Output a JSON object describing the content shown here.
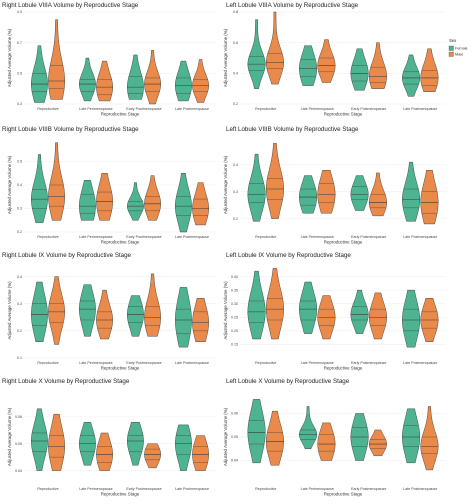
{
  "colors": {
    "female": "#4db391",
    "male": "#e98a4b",
    "outline": "#3a3a3a",
    "grid": "#ececec"
  },
  "legend": {
    "title": "Sex",
    "items": [
      "Female",
      "Male"
    ]
  },
  "chart_data": [
    {
      "type": "violin",
      "title": "Right Lobule VIIIA Volume by Reproductive Stage",
      "xlabel": "Reproductive Stage",
      "ylabel": "Adjusted Average Volume (%)",
      "categories": [
        "Reproductive",
        "Late Perimenopause",
        "Early Postmenopause",
        "Late Postmenopause"
      ],
      "ylim": [
        0.3,
        0.9
      ],
      "yticks": [
        "0.3",
        "0.5",
        "0.7",
        "0.9"
      ],
      "series": [
        {
          "name": "Female",
          "median": [
            0.43,
            0.43,
            0.41,
            0.42
          ],
          "q1": [
            0.38,
            0.38,
            0.37,
            0.37
          ],
          "q3": [
            0.5,
            0.46,
            0.48,
            0.47
          ],
          "min": [
            0.31,
            0.32,
            0.33,
            0.32
          ],
          "max": [
            0.68,
            0.6,
            0.62,
            0.58
          ]
        },
        {
          "name": "Male",
          "median": [
            0.45,
            0.41,
            0.43,
            0.42
          ],
          "q1": [
            0.4,
            0.36,
            0.38,
            0.38
          ],
          "q3": [
            0.55,
            0.46,
            0.47,
            0.46
          ],
          "min": [
            0.33,
            0.32,
            0.3,
            0.31
          ],
          "max": [
            0.85,
            0.58,
            0.65,
            0.59
          ]
        }
      ]
    },
    {
      "type": "violin",
      "title": "Left Lobule VIIIA Volume by Reproductive Stage",
      "xlabel": "Reproductive Stage",
      "ylabel": "Adjusted Average Volume (%)",
      "categories": [
        "Reproductive",
        "Late Perimenopause",
        "Early Postmenopause",
        "Late Postmenopause"
      ],
      "ylim": [
        0.2,
        0.8
      ],
      "yticks": [
        "0.2",
        "0.4",
        "0.6",
        "0.8"
      ],
      "series": [
        {
          "name": "Female",
          "median": [
            0.46,
            0.43,
            0.4,
            0.37
          ],
          "q1": [
            0.42,
            0.38,
            0.35,
            0.33
          ],
          "q3": [
            0.51,
            0.49,
            0.45,
            0.41
          ],
          "min": [
            0.3,
            0.32,
            0.29,
            0.25
          ],
          "max": [
            0.75,
            0.58,
            0.56,
            0.52
          ]
        },
        {
          "name": "Male",
          "median": [
            0.47,
            0.45,
            0.38,
            0.37
          ],
          "q1": [
            0.43,
            0.41,
            0.34,
            0.32
          ],
          "q3": [
            0.53,
            0.5,
            0.44,
            0.42
          ],
          "min": [
            0.33,
            0.34,
            0.3,
            0.28
          ],
          "max": [
            0.8,
            0.62,
            0.6,
            0.56
          ]
        }
      ]
    },
    {
      "type": "violin",
      "title": "Right Lobule VIIIB Volume by Reproductive Stage",
      "xlabel": "Reproductive Stage",
      "ylabel": "Adjusted Average Volume (%)",
      "categories": [
        "Reproductive",
        "Late Perimenopause",
        "Early Postmenopause",
        "Late Postmenopause"
      ],
      "ylim": [
        0.2,
        0.6
      ],
      "yticks": [
        "0.2",
        "0.3",
        "0.4",
        "0.5"
      ],
      "series": [
        {
          "name": "Female",
          "median": [
            0.34,
            0.31,
            0.31,
            0.31
          ],
          "q1": [
            0.3,
            0.28,
            0.29,
            0.27
          ],
          "q3": [
            0.38,
            0.36,
            0.33,
            0.35
          ],
          "min": [
            0.24,
            0.25,
            0.25,
            0.2
          ],
          "max": [
            0.53,
            0.42,
            0.41,
            0.45
          ]
        },
        {
          "name": "Male",
          "median": [
            0.35,
            0.33,
            0.32,
            0.3
          ],
          "q1": [
            0.31,
            0.29,
            0.29,
            0.27
          ],
          "q3": [
            0.4,
            0.37,
            0.35,
            0.34
          ],
          "min": [
            0.25,
            0.25,
            0.25,
            0.23
          ],
          "max": [
            0.58,
            0.45,
            0.44,
            0.41
          ]
        }
      ]
    },
    {
      "type": "violin",
      "title": "Left Lobule VIIIB Volume by Reproductive Stage",
      "xlabel": "Reproductive Stage",
      "ylabel": "Adjusted Average Volume (%)",
      "categories": [
        "Reproductive",
        "Late Perimenopause",
        "Early Postmenopause",
        "Late Postmenopause"
      ],
      "ylim": [
        0.15,
        0.5
      ],
      "yticks": [
        "0.2",
        "0.3",
        "0.4"
      ],
      "series": [
        {
          "name": "Female",
          "median": [
            0.29,
            0.28,
            0.29,
            0.27
          ],
          "q1": [
            0.26,
            0.25,
            0.27,
            0.24
          ],
          "q3": [
            0.33,
            0.31,
            0.32,
            0.31
          ],
          "min": [
            0.19,
            0.22,
            0.23,
            0.19
          ],
          "max": [
            0.44,
            0.36,
            0.36,
            0.41
          ]
        },
        {
          "name": "Male",
          "median": [
            0.31,
            0.29,
            0.26,
            0.26
          ],
          "q1": [
            0.27,
            0.26,
            0.24,
            0.22
          ],
          "q3": [
            0.35,
            0.33,
            0.29,
            0.3
          ],
          "min": [
            0.2,
            0.22,
            0.21,
            0.18
          ],
          "max": [
            0.48,
            0.38,
            0.37,
            0.38
          ]
        }
      ]
    },
    {
      "type": "violin",
      "title": "Right Lobule IX Volume by Reproductive Stage",
      "xlabel": "Reproductive Stage",
      "ylabel": "Adjusted Average Volume (%)",
      "categories": [
        "Reproductive",
        "Late Perimenopause",
        "Early Postmenopause",
        "Late Postmenopause"
      ],
      "ylim": [
        0.1,
        0.45
      ],
      "yticks": [
        "0.1",
        "0.2",
        "0.3",
        "0.4"
      ],
      "series": [
        {
          "name": "Female",
          "median": [
            0.26,
            0.28,
            0.26,
            0.24
          ],
          "q1": [
            0.22,
            0.24,
            0.23,
            0.19
          ],
          "q3": [
            0.3,
            0.31,
            0.29,
            0.28
          ],
          "min": [
            0.16,
            0.18,
            0.18,
            0.14
          ],
          "max": [
            0.38,
            0.37,
            0.33,
            0.36
          ]
        },
        {
          "name": "Male",
          "median": [
            0.27,
            0.24,
            0.25,
            0.23
          ],
          "q1": [
            0.23,
            0.21,
            0.22,
            0.2
          ],
          "q3": [
            0.3,
            0.27,
            0.29,
            0.27
          ],
          "min": [
            0.15,
            0.17,
            0.18,
            0.16
          ],
          "max": [
            0.4,
            0.35,
            0.41,
            0.32
          ]
        }
      ]
    },
    {
      "type": "violin",
      "title": "Left Lobule IX Volume by Reproductive Stage",
      "xlabel": "Reproductive Stage",
      "ylabel": "Adjusted Average Volume (%)",
      "categories": [
        "Reproductive",
        "Late Perimenopause",
        "Early Postmenopause",
        "Late Postmenopause"
      ],
      "ylim": [
        0.1,
        0.45
      ],
      "yticks": [
        "0.15",
        "0.20",
        "0.25",
        "0.30",
        "0.35",
        "0.40"
      ],
      "series": [
        {
          "name": "Female",
          "median": [
            0.27,
            0.28,
            0.26,
            0.24
          ],
          "q1": [
            0.23,
            0.24,
            0.24,
            0.2
          ],
          "q3": [
            0.31,
            0.31,
            0.29,
            0.28
          ],
          "min": [
            0.17,
            0.19,
            0.19,
            0.14
          ],
          "max": [
            0.42,
            0.38,
            0.35,
            0.35
          ]
        },
        {
          "name": "Male",
          "median": [
            0.28,
            0.25,
            0.25,
            0.24
          ],
          "q1": [
            0.24,
            0.22,
            0.22,
            0.21
          ],
          "q3": [
            0.32,
            0.28,
            0.28,
            0.27
          ],
          "min": [
            0.17,
            0.17,
            0.17,
            0.16
          ],
          "max": [
            0.43,
            0.33,
            0.34,
            0.32
          ]
        }
      ]
    },
    {
      "type": "violin",
      "title": "Right Lobule X Volume by Reproductive Stage",
      "xlabel": "Reproductive Stage",
      "ylabel": "Adjusted Average Volume (%)",
      "categories": [
        "Reproductive",
        "Late Perimenopause",
        "Early Postmenopause",
        "Late Postmenopause"
      ],
      "ylim": [
        0.035,
        0.07
      ],
      "yticks": [
        "0.04",
        "0.05",
        "0.06"
      ],
      "series": [
        {
          "name": "Female",
          "median": [
            0.051,
            0.05,
            0.051,
            0.05
          ],
          "q1": [
            0.047,
            0.047,
            0.047,
            0.046
          ],
          "q3": [
            0.054,
            0.053,
            0.053,
            0.053
          ],
          "min": [
            0.04,
            0.042,
            0.042,
            0.04
          ],
          "max": [
            0.063,
            0.058,
            0.058,
            0.057
          ]
        },
        {
          "name": "Male",
          "median": [
            0.049,
            0.046,
            0.046,
            0.046
          ],
          "q1": [
            0.045,
            0.043,
            0.044,
            0.043
          ],
          "q3": [
            0.053,
            0.049,
            0.048,
            0.049
          ],
          "min": [
            0.04,
            0.04,
            0.041,
            0.04
          ],
          "max": [
            0.061,
            0.054,
            0.05,
            0.053
          ]
        }
      ]
    },
    {
      "type": "violin",
      "title": "Left Lobule X Volume by Reproductive Stage",
      "xlabel": "Reproductive Stage",
      "ylabel": "Adjusted Average Volume (%)",
      "categories": [
        "Reproductive",
        "Late Perimenopause",
        "Early Postmenopause",
        "Late Postmenopause"
      ],
      "ylim": [
        0.03,
        0.07
      ],
      "yticks": [
        "0.04",
        "0.05",
        "0.06"
      ],
      "series": [
        {
          "name": "Female",
          "median": [
            0.052,
            0.051,
            0.05,
            0.05
          ],
          "q1": [
            0.047,
            0.049,
            0.046,
            0.046
          ],
          "q3": [
            0.057,
            0.053,
            0.054,
            0.055
          ],
          "min": [
            0.039,
            0.045,
            0.04,
            0.039
          ],
          "max": [
            0.066,
            0.063,
            0.06,
            0.062
          ]
        },
        {
          "name": "Male",
          "median": [
            0.048,
            0.047,
            0.047,
            0.046
          ],
          "q1": [
            0.044,
            0.044,
            0.045,
            0.043
          ],
          "q3": [
            0.052,
            0.051,
            0.049,
            0.05
          ],
          "min": [
            0.038,
            0.04,
            0.042,
            0.036
          ],
          "max": [
            0.061,
            0.056,
            0.053,
            0.063
          ]
        }
      ]
    }
  ]
}
